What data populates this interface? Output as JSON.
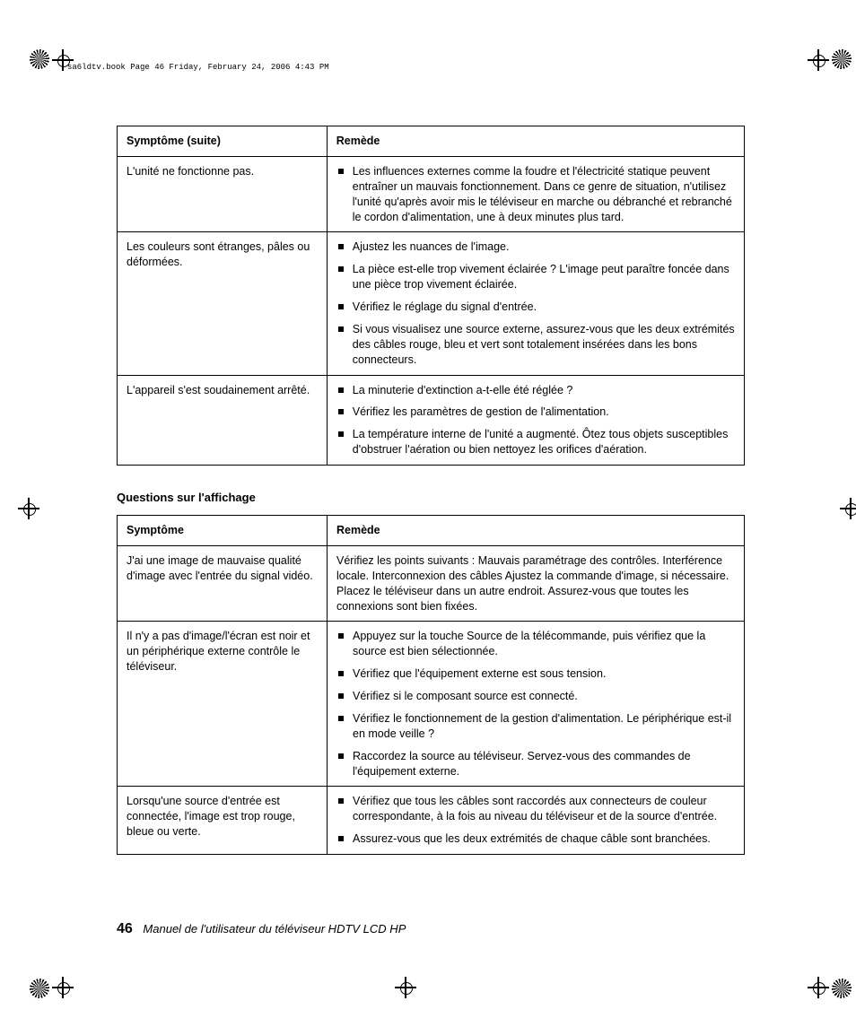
{
  "header_meta": "sa6ldtv.book  Page 46  Friday, February 24, 2006  4:43 PM",
  "table1": {
    "headers": {
      "symptom": "Symptôme (suite)",
      "remedy": "Remède"
    },
    "rows": [
      {
        "symptom": "L'unité ne fonctionne pas.",
        "remedies": [
          "Les influences externes comme la foudre et l'électricité statique peuvent entraîner un mauvais fonctionnement. Dans ce genre de situation, n'utilisez l'unité qu'après avoir mis le téléviseur en marche ou débranché et rebranché le cordon d'alimentation, une à deux minutes plus tard."
        ],
        "bulleted": true
      },
      {
        "symptom": "Les couleurs sont étranges, pâles ou déformées.",
        "remedies": [
          "Ajustez les nuances de l'image.",
          "La pièce est-elle trop vivement éclairée ? L'image peut paraître foncée dans une pièce trop vivement éclairée.",
          "Vérifiez le réglage du signal d'entrée.",
          "Si vous visualisez une source externe, assurez-vous que les deux extrémités des câbles rouge, bleu et vert sont totalement insérées dans les bons connecteurs."
        ],
        "bulleted": true
      },
      {
        "symptom": "L'appareil s'est soudainement arrêté.",
        "remedies": [
          "La minuterie d'extinction a-t-elle été réglée ?",
          "Vérifiez les paramètres de gestion de l'alimentation.",
          "La température interne de l'unité a augmenté. Ôtez tous objets susceptibles d'obstruer l'aération ou bien nettoyez les orifices d'aération."
        ],
        "bulleted": true
      }
    ]
  },
  "section_heading": "Questions sur l'affichage",
  "table2": {
    "headers": {
      "symptom": "Symptôme",
      "remedy": "Remède"
    },
    "rows": [
      {
        "symptom": "J'ai une image de mauvaise qualité d'image avec l'entrée du signal vidéo.",
        "remedies": [
          "Vérifiez les points suivants : Mauvais paramétrage des contrôles. Interférence locale. Interconnexion des câbles Ajustez la commande d'image, si nécessaire. Placez le téléviseur dans un autre endroit. Assurez-vous que toutes les connexions sont bien fixées."
        ],
        "bulleted": false
      },
      {
        "symptom": "Il n'y a pas d'image/l'écran est noir et un périphérique externe contrôle le téléviseur.",
        "remedies": [
          "Appuyez sur la touche Source de la télécommande, puis vérifiez que la source est bien sélectionnée.",
          "Vérifiez que l'équipement externe est sous tension.",
          "Vérifiez si le composant source est connecté.",
          "Vérifiez le fonctionnement de la gestion d'alimentation. Le périphérique est-il en mode veille ?",
          "Raccordez la source au téléviseur. Servez-vous des commandes de l'équipement externe."
        ],
        "bulleted": true
      },
      {
        "symptom": "Lorsqu'une source d'entrée est connectée, l'image est trop rouge, bleue ou verte.",
        "remedies": [
          "Vérifiez que tous les câbles sont raccordés aux connecteurs de couleur correspondante, à la fois au niveau du téléviseur et de la source d'entrée.",
          "Assurez-vous que les deux extrémités de chaque câble sont branchées."
        ],
        "bulleted": true
      }
    ]
  },
  "footer": {
    "page_number": "46",
    "book_title": "Manuel de l'utilisateur du téléviseur HDTV LCD HP"
  }
}
